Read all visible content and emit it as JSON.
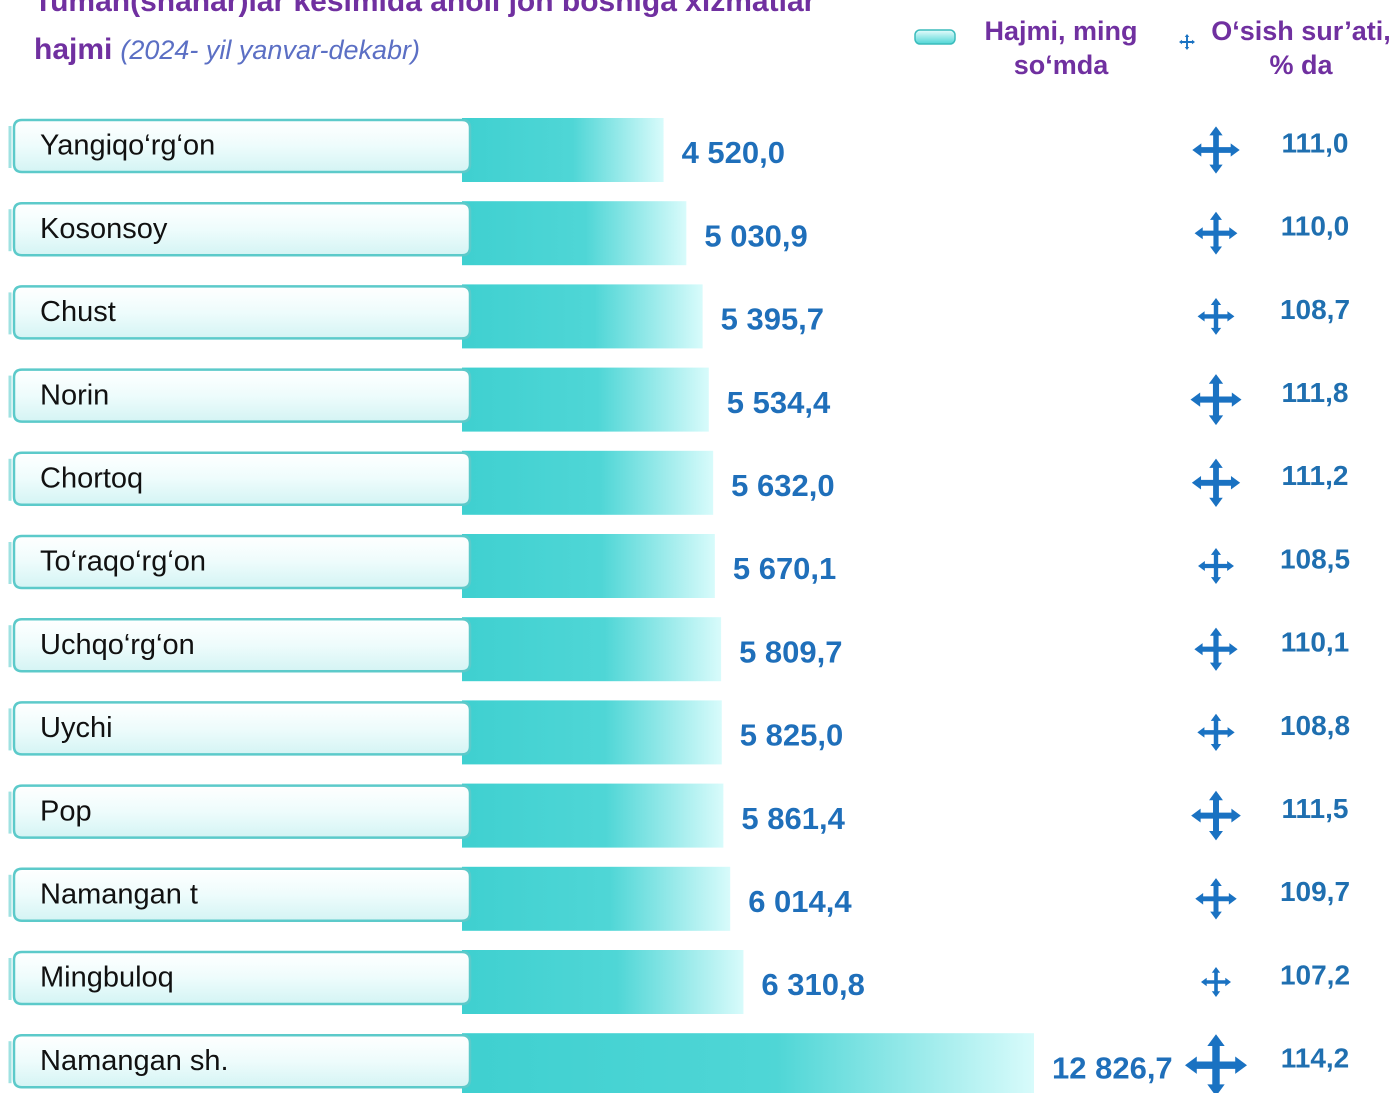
{
  "chart_data": {
    "type": "bar",
    "title": "Tuman(shahar)lar kesimida aholi jon boshiga xizmatlar hajmi",
    "subtitle": "(2024- yil yanvar-dekabr)",
    "categories": [
      "Yangiqo‘rg‘on",
      "Kosonsoy",
      "Chust",
      "Norin",
      "Chortoq",
      "To‘raqo‘rg‘on",
      "Uchqo‘rg‘on",
      "Uychi",
      "Pop",
      "Namangan t",
      "Mingbuloq",
      "Namangan sh."
    ],
    "series": [
      {
        "name": "Hajmi, ming so‘mda",
        "color": "#3fcfcf",
        "values": [
          4520.0,
          5030.9,
          5395.7,
          5534.4,
          5632.0,
          5670.1,
          5809.7,
          5825.0,
          5861.4,
          6014.4,
          6310.8,
          12826.7
        ],
        "value_labels": [
          "4 520,0",
          "5 030,9",
          "5 395,7",
          "5 534,4",
          "5 632,0",
          "5 670,1",
          "5 809,7",
          "5 825,0",
          "5 861,4",
          "6 014,4",
          "6 310,8",
          "12 826,7"
        ]
      },
      {
        "name": "O‘sish sur’ati, % da",
        "color": "#1a72c2",
        "values": [
          111.0,
          110.0,
          108.7,
          111.8,
          111.2,
          108.5,
          110.1,
          108.8,
          111.5,
          109.7,
          107.2,
          114.2
        ],
        "value_labels": [
          "111,0",
          "110,0",
          "108,7",
          "111,8",
          "111,2",
          "108,5",
          "110,1",
          "108,8",
          "111,5",
          "109,7",
          "107,2",
          "114,2"
        ]
      }
    ]
  }
}
